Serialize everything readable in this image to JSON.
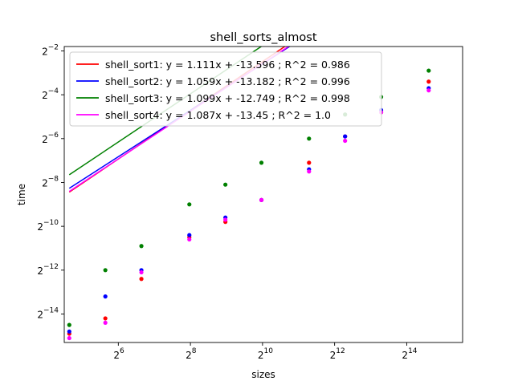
{
  "chart_data": {
    "type": "scatter",
    "title": "shell_sorts_almost",
    "xlabel": "sizes",
    "ylabel": "time",
    "xscale": "log2",
    "yscale": "log2",
    "xlim_log2": [
      4.5,
      15.55
    ],
    "ylim_log2": [
      -15.3,
      -1.8
    ],
    "xticks_log2": [
      6,
      8,
      10,
      12,
      14
    ],
    "yticks_log2": [
      -14,
      -12,
      -10,
      -8,
      -6,
      -4,
      -2
    ],
    "x_log2": [
      4.64,
      5.64,
      6.64,
      7.97,
      8.97,
      9.97,
      11.29,
      12.29,
      13.29,
      14.61
    ],
    "grid": false,
    "legend_position": "upper-left",
    "series": [
      {
        "name": "shell_sort1: y = 1.111x + -13.596 ; R^2 = 0.986",
        "color": "#ff0000",
        "fit": {
          "slope": 1.111,
          "intercept": -13.596
        },
        "y_log2": [
          -14.9,
          -14.2,
          -12.4,
          -10.5,
          -9.8,
          -8.8,
          -7.1,
          -5.9,
          -4.8,
          -3.4
        ]
      },
      {
        "name": "shell_sort2: y = 1.059x + -13.182 ; R^2 = 0.996",
        "color": "#0000ff",
        "fit": {
          "slope": 1.059,
          "intercept": -13.182
        },
        "y_log2": [
          -14.8,
          -13.2,
          -12.0,
          -10.4,
          -9.6,
          -8.8,
          -7.4,
          -5.9,
          -4.7,
          -3.7
        ]
      },
      {
        "name": "shell_sort3: y = 1.099x + -12.749 ; R^2 = 0.998",
        "color": "#008000",
        "fit": {
          "slope": 1.099,
          "intercept": -12.749
        },
        "y_log2": [
          -14.5,
          -12.0,
          -10.9,
          -9.0,
          -8.1,
          -7.1,
          -6.0,
          -4.9,
          -4.1,
          -2.9
        ]
      },
      {
        "name": "shell_sort4: y = 1.087x + -13.45 ; R^2 = 1.0",
        "color": "#ff00ff",
        "fit": {
          "slope": 1.087,
          "intercept": -13.45
        },
        "y_log2": [
          -15.1,
          -14.4,
          -12.1,
          -10.6,
          -9.7,
          -8.8,
          -7.5,
          -6.1,
          -4.8,
          -3.8
        ]
      }
    ]
  }
}
